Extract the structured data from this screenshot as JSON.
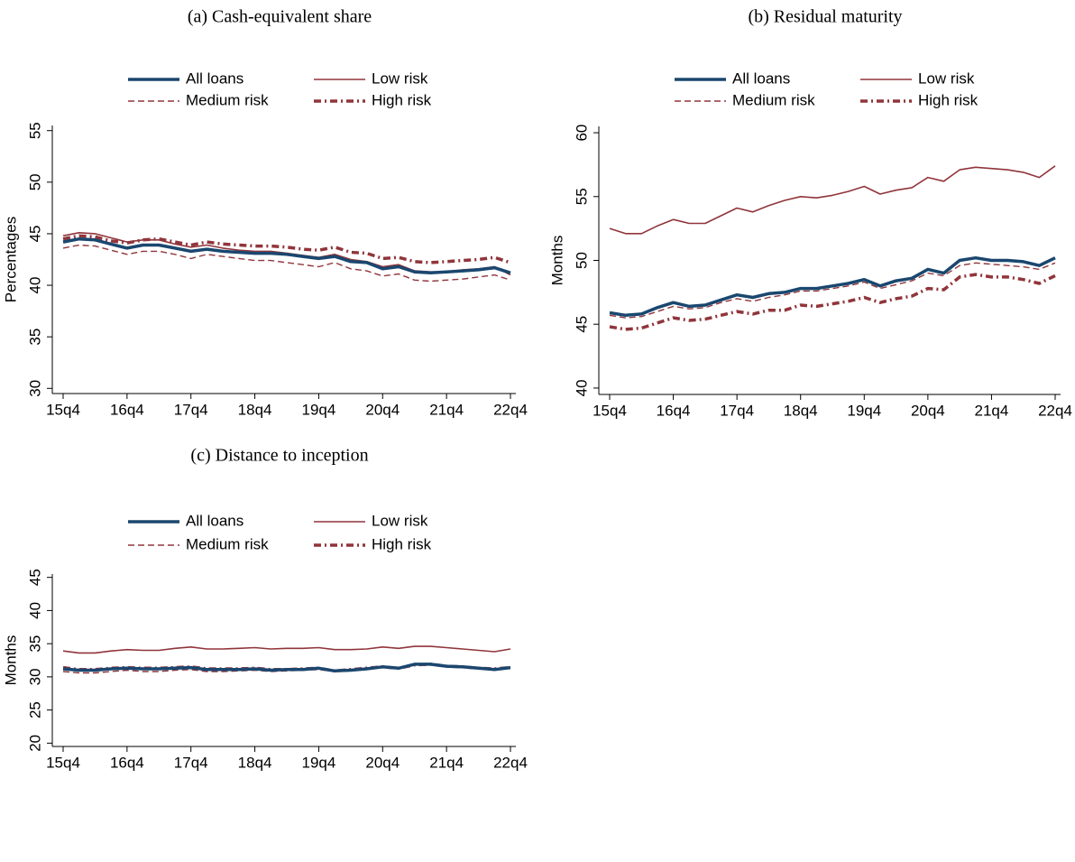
{
  "chart_data": [
    {
      "type": "line",
      "title": "(a) Cash-equivalent share",
      "ylabel": "Percentages",
      "categories": [
        "15q4",
        null,
        null,
        null,
        "16q4",
        null,
        null,
        null,
        "17q4",
        null,
        null,
        null,
        "18q4",
        null,
        null,
        null,
        "19q4",
        null,
        null,
        null,
        "20q4",
        null,
        null,
        null,
        "21q4",
        null,
        null,
        null,
        "22q4"
      ],
      "ylim": [
        29.5,
        55.5
      ],
      "yticks": [
        30,
        35,
        40,
        45,
        50,
        55
      ],
      "series": [
        {
          "name": "All loans",
          "color": "#1a476f",
          "line_style": "solid-thick",
          "values": [
            44.2,
            44.5,
            44.4,
            44.0,
            43.6,
            43.9,
            43.9,
            43.6,
            43.3,
            43.5,
            43.3,
            43.2,
            43.1,
            43.1,
            43.0,
            42.8,
            42.6,
            42.8,
            42.3,
            42.2,
            41.6,
            41.8,
            41.3,
            41.2,
            41.3,
            41.4,
            41.5,
            41.7,
            41.2
          ]
        },
        {
          "name": "Low risk",
          "color": "#90353b",
          "line_style": "solid",
          "values": [
            44.8,
            45.1,
            45.0,
            44.6,
            44.2,
            44.4,
            44.4,
            44.0,
            43.7,
            43.9,
            43.6,
            43.4,
            43.3,
            43.3,
            43.1,
            42.9,
            42.7,
            43.0,
            42.5,
            42.3,
            41.8,
            42.0,
            41.4,
            41.3,
            41.3,
            41.5,
            41.6,
            41.8,
            41.0
          ]
        },
        {
          "name": "Medium risk",
          "color": "#90353b",
          "line_style": "dashed",
          "values": [
            43.6,
            43.9,
            43.8,
            43.4,
            43.0,
            43.3,
            43.3,
            43.0,
            42.6,
            43.0,
            42.8,
            42.6,
            42.4,
            42.4,
            42.2,
            42.0,
            41.8,
            42.2,
            41.6,
            41.4,
            40.9,
            41.1,
            40.5,
            40.4,
            40.5,
            40.6,
            40.8,
            41.0,
            40.5
          ]
        },
        {
          "name": "High risk",
          "color": "#90353b",
          "line_style": "dash-dot-thick",
          "values": [
            44.5,
            44.8,
            44.7,
            44.3,
            44.1,
            44.4,
            44.5,
            44.2,
            43.9,
            44.2,
            44.0,
            43.9,
            43.8,
            43.8,
            43.7,
            43.5,
            43.4,
            43.7,
            43.2,
            43.1,
            42.6,
            42.7,
            42.3,
            42.2,
            42.3,
            42.4,
            42.5,
            42.7,
            42.2
          ]
        }
      ]
    },
    {
      "type": "line",
      "title": "(b) Residual maturity",
      "ylabel": "Months",
      "categories": [
        "15q4",
        null,
        null,
        null,
        "16q4",
        null,
        null,
        null,
        "17q4",
        null,
        null,
        null,
        "18q4",
        null,
        null,
        null,
        "19q4",
        null,
        null,
        null,
        "20q4",
        null,
        null,
        null,
        "21q4",
        null,
        null,
        null,
        "22q4"
      ],
      "ylim": [
        39.5,
        60.5
      ],
      "yticks": [
        40,
        45,
        50,
        55,
        60
      ],
      "series": [
        {
          "name": "All loans",
          "color": "#1a476f",
          "line_style": "solid-thick",
          "values": [
            45.9,
            45.7,
            45.8,
            46.3,
            46.7,
            46.4,
            46.5,
            46.9,
            47.3,
            47.1,
            47.4,
            47.5,
            47.8,
            47.8,
            48.0,
            48.2,
            48.5,
            48.0,
            48.4,
            48.6,
            49.3,
            49.0,
            50.0,
            50.2,
            50.0,
            50.0,
            49.9,
            49.6,
            50.2
          ]
        },
        {
          "name": "Low risk",
          "color": "#90353b",
          "line_style": "solid",
          "values": [
            52.5,
            52.1,
            52.1,
            52.7,
            53.2,
            52.9,
            52.9,
            53.5,
            54.1,
            53.8,
            54.3,
            54.7,
            55.0,
            54.9,
            55.1,
            55.4,
            55.8,
            55.2,
            55.5,
            55.7,
            56.5,
            56.2,
            57.1,
            57.3,
            57.2,
            57.1,
            56.9,
            56.5,
            57.4
          ]
        },
        {
          "name": "Medium risk",
          "color": "#90353b",
          "line_style": "dashed",
          "values": [
            45.7,
            45.5,
            45.6,
            46.0,
            46.4,
            46.2,
            46.3,
            46.7,
            47.0,
            46.8,
            47.1,
            47.3,
            47.6,
            47.6,
            47.8,
            48.0,
            48.3,
            47.8,
            48.1,
            48.4,
            49.0,
            48.8,
            49.6,
            49.8,
            49.7,
            49.6,
            49.5,
            49.3,
            49.8
          ]
        },
        {
          "name": "High risk",
          "color": "#90353b",
          "line_style": "dash-dot-thick",
          "values": [
            44.8,
            44.6,
            44.7,
            45.1,
            45.5,
            45.3,
            45.4,
            45.7,
            46.0,
            45.8,
            46.1,
            46.1,
            46.5,
            46.4,
            46.6,
            46.8,
            47.1,
            46.7,
            47.0,
            47.2,
            47.8,
            47.7,
            48.7,
            48.9,
            48.7,
            48.7,
            48.5,
            48.2,
            48.8
          ]
        }
      ]
    },
    {
      "type": "line",
      "title": "(c) Distance to inception",
      "ylabel": "Months",
      "categories": [
        "15q4",
        null,
        null,
        null,
        "16q4",
        null,
        null,
        null,
        "17q4",
        null,
        null,
        null,
        "18q4",
        null,
        null,
        null,
        "19q4",
        null,
        null,
        null,
        "20q4",
        null,
        null,
        null,
        "21q4",
        null,
        null,
        null,
        "22q4"
      ],
      "ylim": [
        19.5,
        45.5
      ],
      "yticks": [
        20,
        25,
        30,
        35,
        40,
        45
      ],
      "series": [
        {
          "name": "All loans",
          "color": "#1a476f",
          "line_style": "solid-thick",
          "values": [
            31.2,
            31.0,
            31.0,
            31.2,
            31.3,
            31.2,
            31.2,
            31.3,
            31.4,
            31.1,
            31.1,
            31.1,
            31.2,
            31.0,
            31.1,
            31.1,
            31.3,
            30.9,
            31.0,
            31.2,
            31.5,
            31.3,
            31.9,
            31.9,
            31.6,
            31.5,
            31.3,
            31.1,
            31.4
          ]
        },
        {
          "name": "Low risk",
          "color": "#90353b",
          "line_style": "solid",
          "values": [
            33.9,
            33.6,
            33.6,
            33.9,
            34.1,
            34.0,
            34.0,
            34.3,
            34.5,
            34.2,
            34.2,
            34.3,
            34.4,
            34.2,
            34.3,
            34.3,
            34.4,
            34.1,
            34.1,
            34.2,
            34.5,
            34.3,
            34.6,
            34.6,
            34.4,
            34.2,
            34.0,
            33.8,
            34.2
          ]
        },
        {
          "name": "Medium risk",
          "color": "#90353b",
          "line_style": "dashed",
          "values": [
            30.8,
            30.6,
            30.6,
            30.8,
            31.0,
            30.8,
            30.8,
            31.0,
            31.1,
            30.8,
            30.8,
            30.9,
            31.0,
            30.8,
            30.9,
            31.0,
            31.1,
            30.8,
            31.0,
            31.2,
            31.4,
            31.2,
            31.8,
            31.8,
            31.5,
            31.4,
            31.3,
            31.0,
            31.3
          ]
        },
        {
          "name": "High risk",
          "color": "#90353b",
          "line_style": "dash-dot-thick",
          "values": [
            31.4,
            31.1,
            31.1,
            31.3,
            31.4,
            31.3,
            31.3,
            31.4,
            31.5,
            31.2,
            31.2,
            31.2,
            31.3,
            31.1,
            31.1,
            31.2,
            31.3,
            30.9,
            31.1,
            31.3,
            31.5,
            31.3,
            31.8,
            31.9,
            31.6,
            31.5,
            31.3,
            31.2,
            31.4
          ]
        }
      ]
    }
  ]
}
